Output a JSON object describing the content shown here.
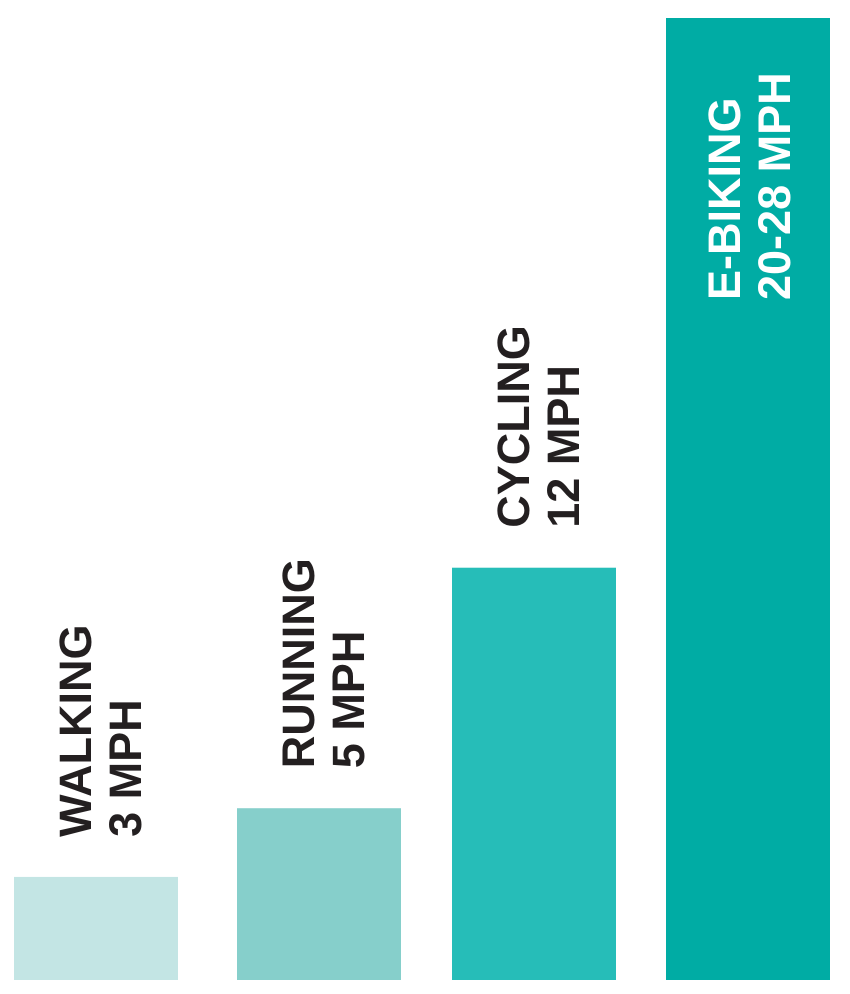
{
  "chart_data": {
    "type": "bar",
    "title": "",
    "xlabel": "",
    "ylabel": "",
    "categories": [
      "WALKING",
      "RUNNING",
      "CYCLING",
      "E-BIKING"
    ],
    "values": [
      3,
      5,
      12,
      28
    ],
    "value_labels": [
      "3 MPH",
      "5 MPH",
      "12 MPH",
      "20-28 MPH"
    ],
    "colors": [
      "#c3e5e4",
      "#86cfcb",
      "#26bdb8",
      "#00aca4"
    ],
    "label_colors": [
      "#231f20",
      "#231f20",
      "#231f20",
      "#ffffff"
    ],
    "ylim": [
      0,
      28
    ],
    "grid": false,
    "legend": "none",
    "axes_visible": false
  }
}
